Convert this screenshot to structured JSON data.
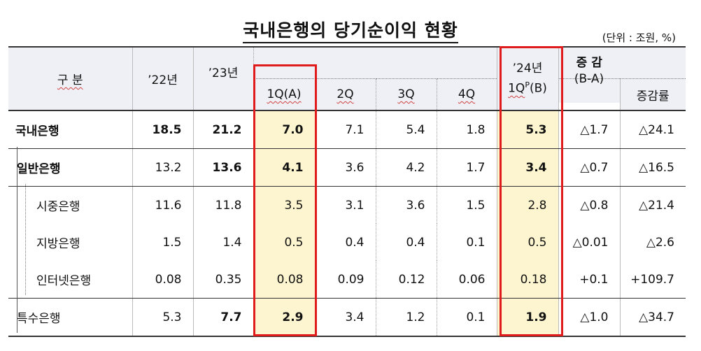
{
  "title": "국내은행의 당기순이익 현황",
  "unit": "(단위 : 조원, %)",
  "columns": {
    "category": "구  분",
    "y22": "’22년",
    "y23": "’23년",
    "q1": "1Q(A)",
    "q2": "2Q",
    "q3": "3Q",
    "q4": "4Q",
    "y24_top": "’24년",
    "y24_bottom_a": "1Q",
    "y24_bottom_sup": "P",
    "y24_bottom_b": "(B)",
    "change_top": "증 감",
    "change_bottom": "(B-A)",
    "rate": "증감률"
  },
  "rows": [
    {
      "label": "국내은행",
      "y22": "18.5",
      "y23": "21.2",
      "q1": "7.0",
      "q2": "7.1",
      "q3": "5.4",
      "q4": "1.8",
      "y24": "5.3",
      "change": "△1.7",
      "rate": "△24.1"
    },
    {
      "label": "일반은행",
      "y22": "13.2",
      "y23": "13.6",
      "q1": "4.1",
      "q2": "3.6",
      "q3": "4.2",
      "q4": "1.7",
      "y24": "3.4",
      "change": "△0.7",
      "rate": "△16.5"
    },
    {
      "label": "시중은행",
      "y22": "11.6",
      "y23": "11.8",
      "q1": "3.5",
      "q2": "3.1",
      "q3": "3.6",
      "q4": "1.5",
      "y24": "2.8",
      "change": "△0.8",
      "rate": "△21.4"
    },
    {
      "label": "지방은행",
      "y22": "1.5",
      "y23": "1.4",
      "q1": "0.5",
      "q2": "0.4",
      "q3": "0.4",
      "q4": "0.1",
      "y24": "0.5",
      "change": "△0.01",
      "rate": "△2.6"
    },
    {
      "label": "인터넷은행",
      "y22": "0.08",
      "y23": "0.35",
      "q1": "0.08",
      "q2": "0.09",
      "q3": "0.12",
      "q4": "0.06",
      "y24": "0.18",
      "change": "+0.1",
      "rate": "+109.7"
    },
    {
      "label": "특수은행",
      "y22": "5.3",
      "y23": "7.7",
      "q1": "2.9",
      "q2": "3.4",
      "q3": "1.2",
      "q4": "0.1",
      "y24": "1.9",
      "change": "△1.0",
      "rate": "△34.7"
    }
  ],
  "colors": {
    "highlight": "#fdf5cf",
    "frame": "#e01b1b",
    "header": "#eef0f5"
  }
}
